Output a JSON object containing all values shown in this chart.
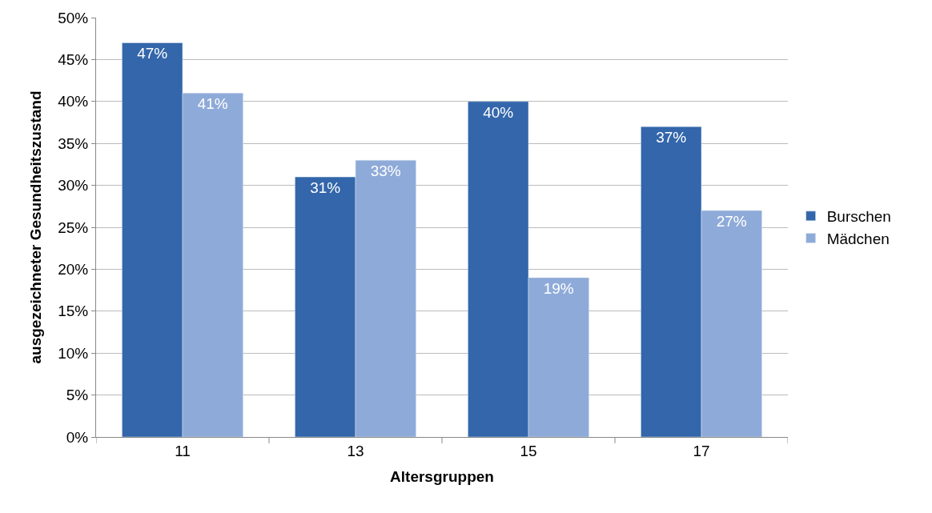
{
  "chart_data": {
    "type": "bar",
    "xlabel": "Altersgruppen",
    "ylabel": "ausgezeichneter Gesundheitszustand",
    "categories": [
      "11",
      "13",
      "15",
      "17"
    ],
    "series": [
      {
        "name": "Burschen",
        "color": "#3366aa",
        "values": [
          47,
          31,
          40,
          37
        ],
        "value_labels": [
          "47%",
          "31%",
          "40%",
          "37%"
        ]
      },
      {
        "name": "Mädchen",
        "color": "#8eaad8",
        "values": [
          41,
          33,
          19,
          27
        ],
        "value_labels": [
          "41%",
          "33%",
          "19%",
          "27%"
        ]
      }
    ],
    "ylim": [
      0,
      50
    ],
    "yticks": [
      {
        "value": 0,
        "label": "0%"
      },
      {
        "value": 5,
        "label": "5%"
      },
      {
        "value": 10,
        "label": "10%"
      },
      {
        "value": 15,
        "label": "15%"
      },
      {
        "value": 20,
        "label": "20%"
      },
      {
        "value": 25,
        "label": "25%"
      },
      {
        "value": 30,
        "label": "30%"
      },
      {
        "value": 35,
        "label": "35%"
      },
      {
        "value": 40,
        "label": "40%"
      },
      {
        "value": 45,
        "label": "45%"
      },
      {
        "value": 50,
        "label": "50%"
      }
    ],
    "grid": "y",
    "legend": "right"
  }
}
